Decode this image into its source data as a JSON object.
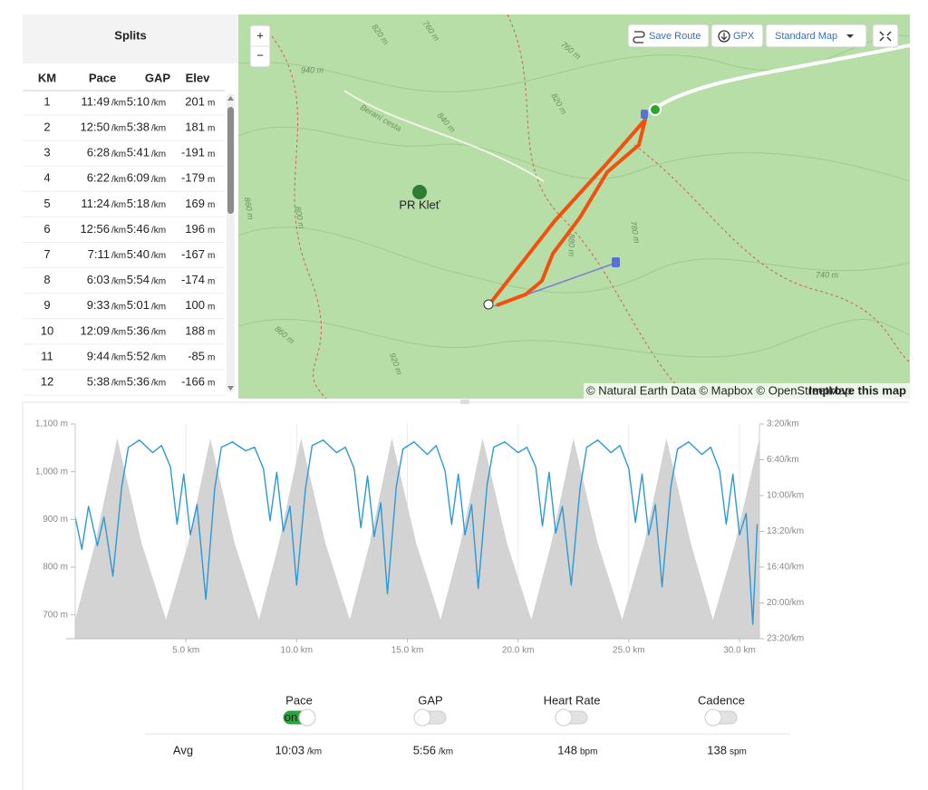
{
  "splits": {
    "title": "Splits",
    "columns": [
      "KM",
      "Pace",
      "GAP",
      "Elev"
    ],
    "pace_unit": "/km",
    "elev_unit": "m",
    "rows": [
      {
        "km": 1,
        "pace": "11:49",
        "gap": "5:10",
        "elev": 201
      },
      {
        "km": 2,
        "pace": "12:50",
        "gap": "5:38",
        "elev": 181
      },
      {
        "km": 3,
        "pace": "6:28",
        "gap": "5:41",
        "elev": -191
      },
      {
        "km": 4,
        "pace": "6:22",
        "gap": "6:09",
        "elev": -179
      },
      {
        "km": 5,
        "pace": "11:24",
        "gap": "5:18",
        "elev": 169
      },
      {
        "km": 6,
        "pace": "12:56",
        "gap": "5:46",
        "elev": 196
      },
      {
        "km": 7,
        "pace": "7:11",
        "gap": "5:40",
        "elev": -167
      },
      {
        "km": 8,
        "pace": "6:03",
        "gap": "5:54",
        "elev": -174
      },
      {
        "km": 9,
        "pace": "9:33",
        "gap": "5:01",
        "elev": 100
      },
      {
        "km": 10,
        "pace": "12:09",
        "gap": "5:36",
        "elev": 188
      },
      {
        "km": 11,
        "pace": "9:44",
        "gap": "5:52",
        "elev": -85
      },
      {
        "km": 12,
        "pace": "5:38",
        "gap": "5:36",
        "elev": -166
      }
    ]
  },
  "map": {
    "zoom_in": "+",
    "zoom_out": "−",
    "save_route": "Save Route",
    "gpx": "GPX",
    "map_style": "Standard Map",
    "poi": "PR Kleť",
    "labels": [
      "820 m",
      "760 m",
      "760 m",
      "940 m",
      "Beraní cesta",
      "840 m",
      "820 m",
      "860 m",
      "880 m",
      "780 m",
      "740 m",
      "860 m",
      "920 m",
      "800 m"
    ],
    "attribution": "© Natural Earth Data © Mapbox © OpenStreetMap",
    "improve": "Improve this map"
  },
  "chart_data": {
    "type": "area",
    "xlim": [
      0,
      30.9
    ],
    "xticks": [
      {
        "value": 5,
        "label": "5.0 km"
      },
      {
        "value": 10,
        "label": "10.0 km"
      },
      {
        "value": 15,
        "label": "15.0 km"
      },
      {
        "value": 20,
        "label": "20.0 km"
      },
      {
        "value": 25,
        "label": "25.0 km"
      },
      {
        "value": 30,
        "label": "30.0 km"
      }
    ],
    "ylim": [
      650,
      1100
    ],
    "yticks": [
      {
        "value": 700,
        "label": "700 m"
      },
      {
        "value": 800,
        "label": "800 m"
      },
      {
        "value": 900,
        "label": "900 m"
      },
      {
        "value": 1000,
        "label": "1,000 m"
      },
      {
        "value": 1100,
        "label": "1,100 m"
      }
    ],
    "y2lim": [
      1400,
      200
    ],
    "y2ticks": [
      {
        "value": 200,
        "label": "3:20/km"
      },
      {
        "value": 400,
        "label": "6:40/km"
      },
      {
        "value": 600,
        "label": "10:00/km"
      },
      {
        "value": 800,
        "label": "13:20/km"
      },
      {
        "value": 1000,
        "label": "16:40/km"
      },
      {
        "value": 1200,
        "label": "20:00/km"
      },
      {
        "value": 1400,
        "label": "23:20/km"
      }
    ],
    "grid": "x",
    "series": [
      {
        "type": "area",
        "color": "#d3d3d3",
        "x": [
          0,
          0.9,
          1.9,
          3.0,
          4.1,
          5.1,
          6.1,
          7.2,
          8.3,
          9.2,
          10.2,
          11.3,
          12.4,
          13.3,
          14.3,
          15.4,
          16.5,
          17.4,
          18.4,
          19.5,
          20.6,
          21.5,
          22.5,
          23.6,
          24.7,
          25.7,
          26.7,
          27.8,
          28.8,
          29.8,
          30.9
        ],
        "values": [
          690,
          850,
          1070,
          850,
          690,
          850,
          1070,
          850,
          690,
          850,
          1070,
          850,
          690,
          850,
          1070,
          850,
          690,
          850,
          1070,
          850,
          690,
          850,
          1070,
          850,
          690,
          850,
          1070,
          850,
          690,
          850,
          1070
        ]
      },
      {
        "type": "line",
        "color": "#2b9ad6",
        "axis": "y2",
        "x": [
          0,
          0.3,
          0.6,
          1.0,
          1.3,
          1.7,
          2.1,
          2.4,
          2.9,
          3.5,
          3.9,
          4.3,
          4.6,
          4.9,
          5.2,
          5.5,
          5.9,
          6.3,
          6.6,
          7.1,
          7.7,
          8.1,
          8.5,
          8.8,
          9.1,
          9.4,
          9.7,
          10.0,
          10.4,
          10.7,
          11.2,
          11.8,
          12.2,
          12.6,
          12.9,
          13.2,
          13.5,
          13.8,
          14.1,
          14.5,
          14.8,
          15.3,
          15.9,
          16.3,
          16.7,
          17.0,
          17.3,
          17.6,
          17.9,
          18.2,
          18.6,
          18.9,
          19.4,
          20.0,
          20.4,
          20.8,
          21.1,
          21.4,
          21.7,
          22.0,
          22.4,
          22.8,
          23.1,
          23.6,
          24.2,
          24.6,
          25.0,
          25.3,
          25.6,
          25.9,
          26.2,
          26.5,
          26.9,
          27.2,
          27.7,
          28.3,
          28.7,
          29.1,
          29.4,
          29.7,
          30.0,
          30.3,
          30.6,
          30.8
        ],
        "values": [
          720,
          900,
          660,
          880,
          720,
          1050,
          550,
          330,
          290,
          360,
          320,
          440,
          760,
          480,
          820,
          650,
          1180,
          560,
          330,
          300,
          350,
          330,
          450,
          740,
          470,
          800,
          660,
          1100,
          560,
          320,
          290,
          360,
          330,
          450,
          780,
          490,
          830,
          640,
          1150,
          550,
          340,
          300,
          370,
          320,
          460,
          760,
          480,
          820,
          650,
          1120,
          540,
          330,
          300,
          360,
          330,
          440,
          770,
          470,
          810,
          660,
          1100,
          560,
          330,
          290,
          360,
          320,
          450,
          750,
          480,
          820,
          650,
          1110,
          550,
          340,
          300,
          370,
          330,
          460,
          760,
          480,
          820,
          700,
          1320,
          760
        ]
      }
    ]
  },
  "metrics": {
    "toggle_on_label": "on",
    "avg_label": "Avg",
    "items": [
      {
        "name": "Pace",
        "on": true,
        "avg": "10:03",
        "unit": "/km"
      },
      {
        "name": "GAP",
        "on": false,
        "avg": "5:56",
        "unit": "/km"
      },
      {
        "name": "Heart Rate",
        "on": false,
        "avg": 148,
        "unit": "bpm"
      },
      {
        "name": "Cadence",
        "on": false,
        "avg": 138,
        "unit": "spm"
      }
    ]
  }
}
